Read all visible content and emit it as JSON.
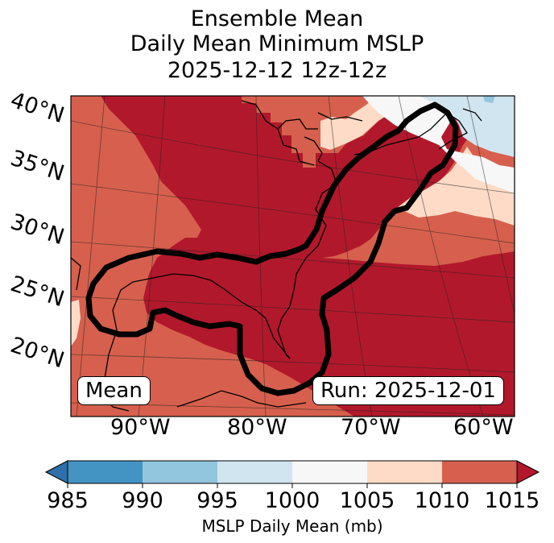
{
  "title": {
    "line1": "Ensemble Mean",
    "line2": "Daily Mean Minimum MSLP",
    "line3": "2025-12-12 12z-12z"
  },
  "map": {
    "lat_labels": [
      "40°N",
      "35°N",
      "30°N",
      "25°N",
      "20°N"
    ],
    "lon_labels": [
      "90°W",
      "80°W",
      "70°W",
      "60°W"
    ],
    "mean_box": "Mean",
    "run_box": "Run: 2025-12-01",
    "colors": {
      "lt985": "#2f6faa",
      "b985_990": "#4393c3",
      "b990_995": "#92c5de",
      "b995_1000": "#d1e5f0",
      "b1000_1005": "#f7f7f7",
      "b1005_1010": "#fddbc7",
      "b1010_1015": "#d6604d",
      "gt1015": "#b2182b"
    }
  },
  "colorbar": {
    "ticks": [
      "985",
      "990",
      "995",
      "1000",
      "1005",
      "1010",
      "1015"
    ],
    "label": "MSLP Daily Mean (mb)"
  }
}
